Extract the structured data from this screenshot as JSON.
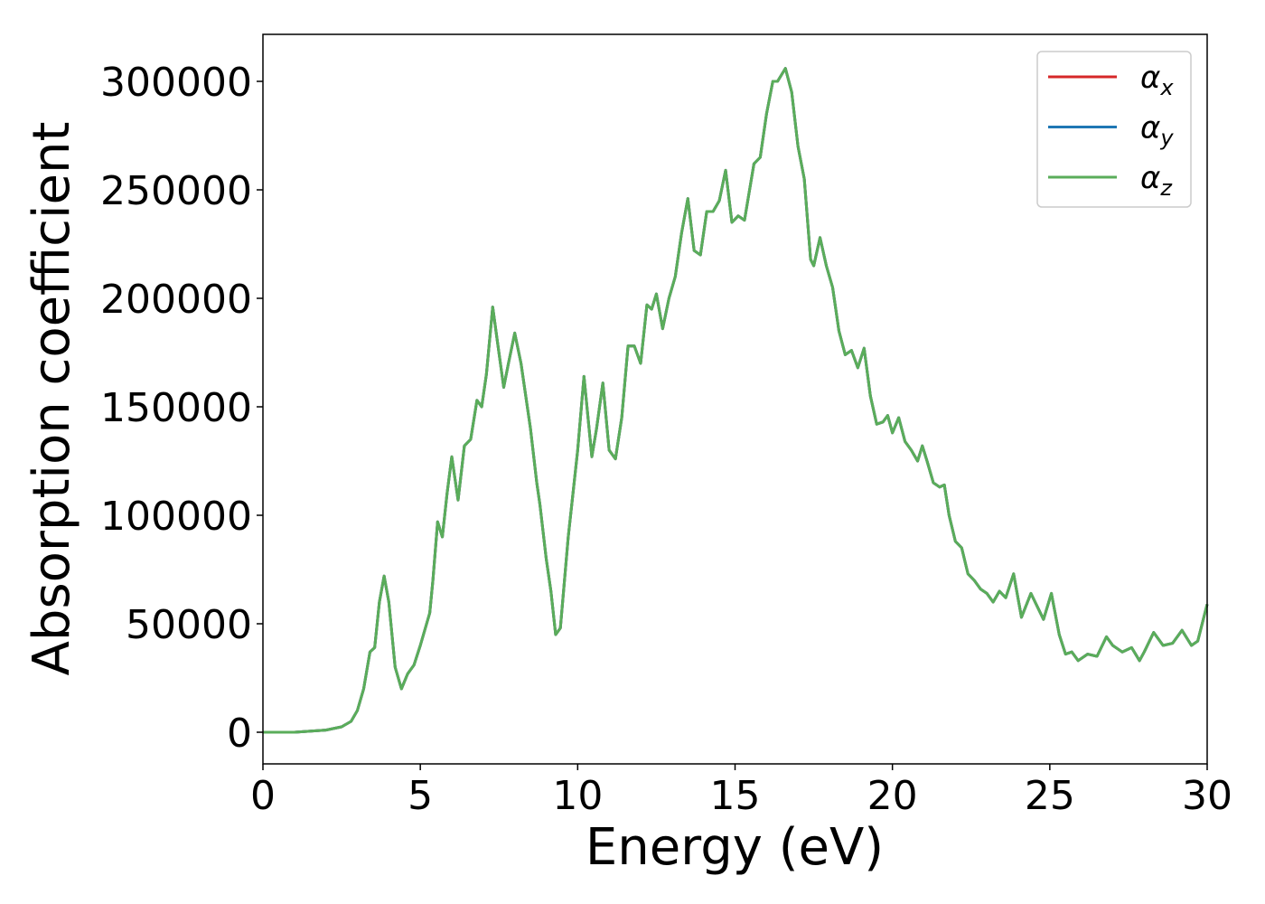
{
  "chart_data": {
    "type": "line",
    "xlabel": "Energy (eV)",
    "ylabel": "Absorption coefficient",
    "xlim": [
      0,
      30
    ],
    "ylim": [
      -14583,
      321667
    ],
    "xticks": [
      0,
      5,
      10,
      15,
      20,
      25,
      30
    ],
    "yticks": [
      0,
      50000,
      100000,
      150000,
      200000,
      250000,
      300000
    ],
    "grid": false,
    "legend": "upper right",
    "x": [
      0,
      1,
      2,
      2.5,
      2.8,
      3.0,
      3.2,
      3.4,
      3.55,
      3.7,
      3.85,
      4.0,
      4.2,
      4.4,
      4.6,
      4.8,
      5.0,
      5.3,
      5.4,
      5.55,
      5.7,
      5.85,
      6.0,
      6.2,
      6.4,
      6.6,
      6.8,
      6.95,
      7.1,
      7.3,
      7.45,
      7.65,
      7.8,
      8.0,
      8.2,
      8.5,
      8.7,
      8.8,
      9.0,
      9.15,
      9.3,
      9.45,
      9.7,
      10.0,
      10.2,
      10.45,
      10.6,
      10.8,
      11.0,
      11.2,
      11.4,
      11.6,
      11.8,
      12.0,
      12.2,
      12.35,
      12.5,
      12.7,
      12.9,
      13.1,
      13.3,
      13.5,
      13.7,
      13.9,
      14.1,
      14.3,
      14.5,
      14.7,
      14.9,
      15.1,
      15.3,
      15.6,
      15.8,
      16.0,
      16.2,
      16.35,
      16.6,
      16.8,
      17.0,
      17.2,
      17.4,
      17.5,
      17.7,
      17.9,
      18.1,
      18.3,
      18.5,
      18.7,
      18.9,
      19.1,
      19.3,
      19.5,
      19.7,
      19.85,
      20.0,
      20.2,
      20.4,
      20.6,
      20.8,
      20.95,
      21.1,
      21.3,
      21.5,
      21.65,
      21.8,
      22.0,
      22.2,
      22.4,
      22.6,
      22.8,
      23.0,
      23.2,
      23.4,
      23.6,
      23.85,
      24.1,
      24.4,
      24.6,
      24.8,
      25.05,
      25.3,
      25.5,
      25.7,
      25.9,
      26.2,
      26.5,
      26.8,
      27.0,
      27.3,
      27.6,
      27.85,
      28.0,
      28.3,
      28.6,
      28.9,
      29.2,
      29.5,
      29.7,
      30.0
    ],
    "series": [
      {
        "name": "αx",
        "color": "#d62728",
        "values": [
          0,
          0,
          1000,
          2500,
          5000,
          10000,
          20000,
          37000,
          39000,
          60000,
          72000,
          60000,
          30000,
          20000,
          27000,
          31000,
          40000,
          55000,
          70000,
          97000,
          90000,
          110000,
          127000,
          107000,
          132000,
          135000,
          153000,
          150000,
          165000,
          196000,
          180000,
          159000,
          170000,
          184000,
          170000,
          140000,
          115000,
          105000,
          80000,
          65000,
          45000,
          48000,
          90000,
          130000,
          164000,
          127000,
          140000,
          161000,
          130000,
          126000,
          145000,
          178000,
          178000,
          170000,
          197000,
          195000,
          202000,
          186000,
          200000,
          210000,
          230000,
          246000,
          222000,
          220000,
          240000,
          240000,
          245000,
          259000,
          235000,
          238000,
          236000,
          262000,
          265000,
          285000,
          300000,
          300000,
          306000,
          295000,
          270000,
          255000,
          218000,
          215000,
          228000,
          215000,
          205000,
          185000,
          174000,
          176000,
          168000,
          177000,
          155000,
          142000,
          143000,
          146000,
          138000,
          145000,
          134000,
          130000,
          125000,
          132000,
          125000,
          115000,
          113000,
          114000,
          100000,
          88000,
          85000,
          73000,
          70000,
          66000,
          64000,
          60000,
          65000,
          62000,
          73000,
          53000,
          64000,
          58000,
          52000,
          64000,
          45000,
          36000,
          37000,
          33000,
          36000,
          35000,
          44000,
          40000,
          37000,
          39000,
          33000,
          37000,
          46000,
          40000,
          41000,
          47000,
          40000,
          42000,
          59000
        ]
      },
      {
        "name": "αy",
        "color": "#1f77b4",
        "values": [
          0,
          0,
          1000,
          2500,
          5000,
          10000,
          20000,
          37000,
          39000,
          60000,
          72000,
          60000,
          30000,
          20000,
          27000,
          31000,
          40000,
          55000,
          70000,
          97000,
          90000,
          110000,
          127000,
          107000,
          132000,
          135000,
          153000,
          150000,
          165000,
          196000,
          180000,
          159000,
          170000,
          184000,
          170000,
          140000,
          115000,
          105000,
          80000,
          65000,
          45000,
          48000,
          90000,
          130000,
          164000,
          127000,
          140000,
          161000,
          130000,
          126000,
          145000,
          178000,
          178000,
          170000,
          197000,
          195000,
          202000,
          186000,
          200000,
          210000,
          230000,
          246000,
          222000,
          220000,
          240000,
          240000,
          245000,
          259000,
          235000,
          238000,
          236000,
          262000,
          265000,
          285000,
          300000,
          300000,
          306000,
          295000,
          270000,
          255000,
          218000,
          215000,
          228000,
          215000,
          205000,
          185000,
          174000,
          176000,
          168000,
          177000,
          155000,
          142000,
          143000,
          146000,
          138000,
          145000,
          134000,
          130000,
          125000,
          132000,
          125000,
          115000,
          113000,
          114000,
          100000,
          88000,
          85000,
          73000,
          70000,
          66000,
          64000,
          60000,
          65000,
          62000,
          73000,
          53000,
          64000,
          58000,
          52000,
          64000,
          45000,
          36000,
          37000,
          33000,
          36000,
          35000,
          44000,
          40000,
          37000,
          39000,
          33000,
          37000,
          46000,
          40000,
          41000,
          47000,
          40000,
          42000,
          59000
        ]
      },
      {
        "name": "αz",
        "color": "#5aad5a",
        "values": [
          0,
          0,
          1000,
          2500,
          5000,
          10000,
          20000,
          37000,
          39000,
          60000,
          72000,
          60000,
          30000,
          20000,
          27000,
          31000,
          40000,
          55000,
          70000,
          97000,
          90000,
          110000,
          127000,
          107000,
          132000,
          135000,
          153000,
          150000,
          165000,
          196000,
          180000,
          159000,
          170000,
          184000,
          170000,
          140000,
          115000,
          105000,
          80000,
          65000,
          45000,
          48000,
          90000,
          130000,
          164000,
          127000,
          140000,
          161000,
          130000,
          126000,
          145000,
          178000,
          178000,
          170000,
          197000,
          195000,
          202000,
          186000,
          200000,
          210000,
          230000,
          246000,
          222000,
          220000,
          240000,
          240000,
          245000,
          259000,
          235000,
          238000,
          236000,
          262000,
          265000,
          285000,
          300000,
          300000,
          306000,
          295000,
          270000,
          255000,
          218000,
          215000,
          228000,
          215000,
          205000,
          185000,
          174000,
          176000,
          168000,
          177000,
          155000,
          142000,
          143000,
          146000,
          138000,
          145000,
          134000,
          130000,
          125000,
          132000,
          125000,
          115000,
          113000,
          114000,
          100000,
          88000,
          85000,
          73000,
          70000,
          66000,
          64000,
          60000,
          65000,
          62000,
          73000,
          53000,
          64000,
          58000,
          52000,
          64000,
          45000,
          36000,
          37000,
          33000,
          36000,
          35000,
          44000,
          40000,
          37000,
          39000,
          33000,
          37000,
          46000,
          40000,
          41000,
          47000,
          40000,
          42000,
          59000
        ]
      }
    ]
  }
}
